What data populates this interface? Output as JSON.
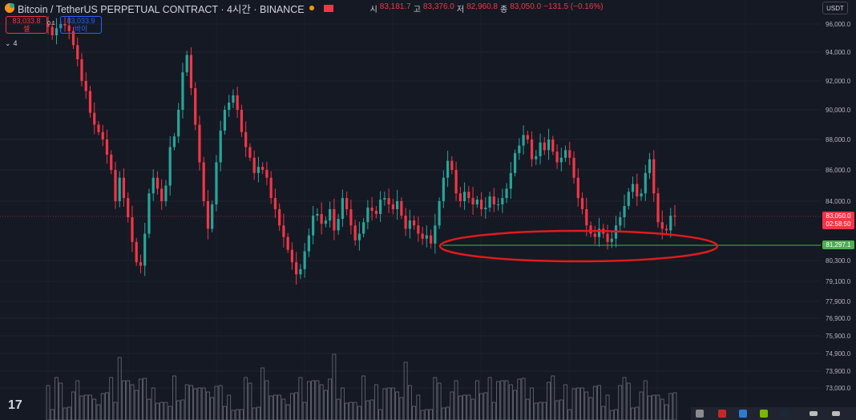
{
  "header": {
    "title": "Bitcoin / TetherUS PERPETUAL CONTRACT · 4시간 · BINANCE",
    "ohlc": [
      {
        "label": "시",
        "value": "83,181.7"
      },
      {
        "label": "고",
        "value": "83,376.0"
      },
      {
        "label": "저",
        "value": "82,960.8"
      },
      {
        "label": "종",
        "value": "83,050.0"
      },
      {
        "label": "",
        "value": "−131.5 (−0.16%)"
      }
    ]
  },
  "trade": {
    "sell_price": "83,033.8",
    "sell_label": "셀",
    "spread": "0.1",
    "buy_price": "83,033.9",
    "buy_label": "바이"
  },
  "indicators": {
    "count": "4"
  },
  "currency": "USDT",
  "price_axis": {
    "last_price": "83,050.0",
    "countdown": "02:58:50",
    "line_price": "81,297.1"
  },
  "colors": {
    "up": "#26a69a",
    "down": "#f23645",
    "line": "#4caf50",
    "ellipse": "#e21b1b",
    "bg": "#151924"
  },
  "chart_data": {
    "type": "candlestick",
    "y_ticks": [
      "96,000.0",
      "94,000.0",
      "92,000.0",
      "90,000.0",
      "88,000.0",
      "86,000.0",
      "84,000.0",
      "80,300.0",
      "79,100.0",
      "77,900.0",
      "76,900.0",
      "75,900.0",
      "74,900.0",
      "73,900.0",
      "73,000.0"
    ],
    "horizontal_line": 81297.1,
    "annotation": "red ellipse around support zone near 81,297",
    "close_path": [
      95800,
      95200,
      95700,
      96000,
      95900,
      95500,
      94500,
      93500,
      92000,
      91300,
      89800,
      89000,
      88500,
      88000,
      87000,
      86000,
      84000,
      85500,
      84200,
      83000,
      81500,
      80200,
      80000,
      82000,
      84500,
      85500,
      84800,
      84000,
      85000,
      87500,
      88200,
      90000,
      92600,
      93800,
      91500,
      89000,
      86500,
      84000,
      82300,
      83800,
      86500,
      88600,
      90000,
      90500,
      91000,
      90000,
      88500,
      87500,
      86800,
      85800,
      86200,
      86000,
      85500,
      84200,
      83500,
      82500,
      81800,
      81000,
      80200,
      79500,
      79800,
      80900,
      81900,
      83100,
      83200,
      82600,
      82800,
      83500,
      82200,
      82900,
      84200,
      83500,
      82500,
      81600,
      82000,
      82700,
      83600,
      83400,
      83200,
      84100,
      84200,
      83800,
      83500,
      84000,
      83100,
      82300,
      82800,
      82500,
      82000,
      81700,
      81900,
      81400,
      82500,
      84000,
      85500,
      86600,
      86000,
      84500,
      84000,
      84600,
      84200,
      83800,
      84100,
      83500,
      83600,
      84300,
      83800,
      83800,
      84200,
      84800,
      85800,
      87100,
      87600,
      88300,
      88000,
      86700,
      86900,
      87800,
      87300,
      88000,
      87200,
      86500,
      86800,
      87300,
      86800,
      85500,
      84200,
      83500,
      82500,
      82000,
      81800,
      82300,
      82000,
      81500,
      81700,
      82500,
      83000,
      83700,
      84600,
      85100,
      84300,
      84500,
      85800,
      86700,
      84500,
      82700,
      82300,
      82200,
      83100,
      83050
    ]
  }
}
